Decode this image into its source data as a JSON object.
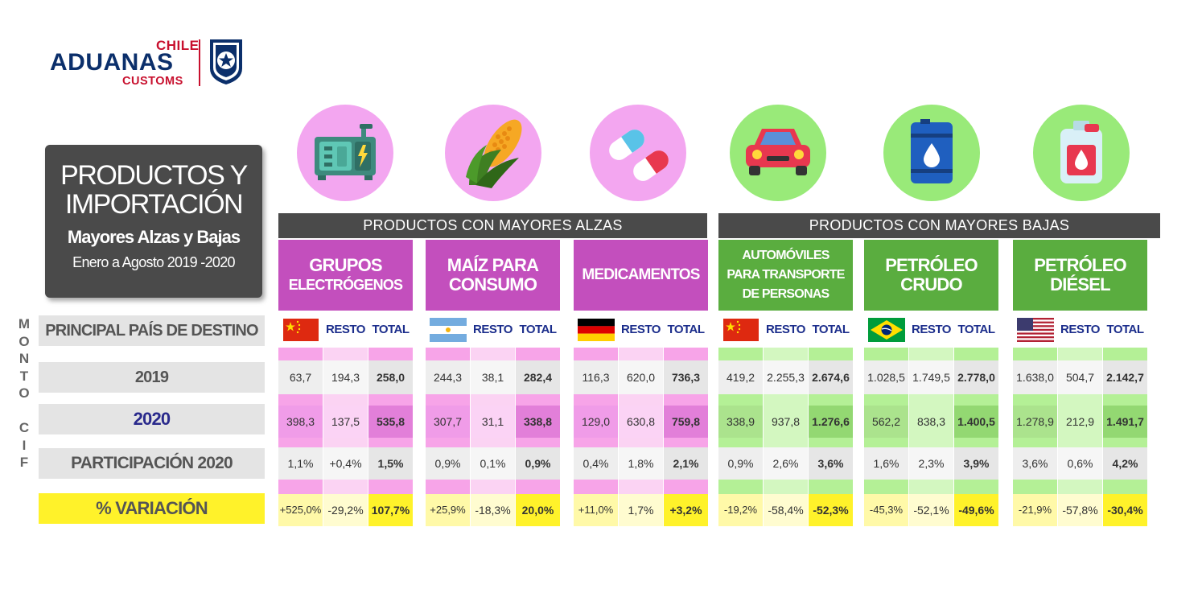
{
  "logo": {
    "chile": "CHILE",
    "aduanas": "ADUANAS",
    "customs": "CUSTOMS"
  },
  "title": {
    "line1": "PRODUCTOS Y",
    "line2": "IMPORTACIÓN",
    "line3": "Mayores Alzas y Bajas",
    "line4": "Enero a Agosto 2019 -2020"
  },
  "side_label": [
    "M",
    "O",
    "N",
    "T",
    "O",
    "",
    "C",
    "I",
    "F"
  ],
  "row_labels": {
    "pais": "PRINCIPAL PAÍS DE DESTINO",
    "y2019": "2019",
    "y2020": "2020",
    "participacion": "PARTICIPACIÓN 2020",
    "variacion": "% VARIACIÓN"
  },
  "sections": {
    "alzas": "PRODUCTOS CON MAYORES ALZAS",
    "bajas": "PRODUCTOS CON MAYORES BAJAS"
  },
  "colors": {
    "pink": "#c34fbd",
    "green": "#5aad3f",
    "dark": "#4a4a4a",
    "yellow": "#fff22a"
  },
  "products": [
    {
      "id": "grupos",
      "group": "alzas",
      "icon": "generator-icon",
      "flag": "china-flag",
      "name_lines": [
        "GRUPOS",
        "ELECTRÓGENOS"
      ],
      "headers": [
        "RESTO",
        "TOTAL"
      ],
      "y2019": [
        "63,7",
        "194,3",
        "258,0"
      ],
      "y2020": [
        "398,3",
        "137,5",
        "535,8"
      ],
      "part": [
        "1,1%",
        "+0,4%",
        "1,5%"
      ],
      "var": [
        "+525,0%",
        "-29,2%",
        "107,7%"
      ]
    },
    {
      "id": "maiz",
      "group": "alzas",
      "icon": "corn-icon",
      "flag": "argentina-flag",
      "name_lines": [
        "MAÍZ PARA",
        "CONSUMO"
      ],
      "headers": [
        "RESTO",
        "TOTAL"
      ],
      "y2019": [
        "244,3",
        "38,1",
        "282,4"
      ],
      "y2020": [
        "307,7",
        "31,1",
        "338,8"
      ],
      "part": [
        "0,9%",
        "0,1%",
        "0,9%"
      ],
      "var": [
        "+25,9%",
        "-18,3%",
        "20,0%"
      ]
    },
    {
      "id": "medicamentos",
      "group": "alzas",
      "icon": "pills-icon",
      "flag": "germany-flag",
      "name_lines": [
        "MEDICAMENTOS"
      ],
      "headers": [
        "RESTO",
        "TOTAL"
      ],
      "y2019": [
        "116,3",
        "620,0",
        "736,3"
      ],
      "y2020": [
        "129,0",
        "630,8",
        "759,8"
      ],
      "part": [
        "0,4%",
        "1,8%",
        "2,1%"
      ],
      "var": [
        "+11,0%",
        "1,7%",
        "+3,2%"
      ]
    },
    {
      "id": "automoviles",
      "group": "bajas",
      "icon": "car-icon",
      "flag": "china-flag",
      "name_lines": [
        "AUTOMÓVILES",
        "PARA TRANSPORTE",
        "DE PERSONAS"
      ],
      "headers": [
        "RESTO",
        "TOTAL"
      ],
      "y2019": [
        "419,2",
        "2.255,3",
        "2.674,6"
      ],
      "y2020": [
        "338,9",
        "937,8",
        "1.276,6"
      ],
      "part": [
        "0,9%",
        "2,6%",
        "3,6%"
      ],
      "var": [
        "-19,2%",
        "-58,4%",
        "-52,3%"
      ]
    },
    {
      "id": "crudo",
      "group": "bajas",
      "icon": "oil-barrel-icon",
      "flag": "brazil-flag",
      "name_lines": [
        "PETRÓLEO",
        "CRUDO"
      ],
      "headers": [
        "RESTO",
        "TOTAL"
      ],
      "y2019": [
        "1.028,5",
        "1.749,5",
        "2.778,0"
      ],
      "y2020": [
        "562,2",
        "838,3",
        "1.400,5"
      ],
      "part": [
        "1,6%",
        "2,3%",
        "3,9%"
      ],
      "var": [
        "-45,3%",
        "-52,1%",
        "-49,6%"
      ]
    },
    {
      "id": "diesel",
      "group": "bajas",
      "icon": "fuel-can-icon",
      "flag": "usa-flag",
      "name_lines": [
        "PETRÓLEO",
        "DIÉSEL"
      ],
      "headers": [
        "RESTO",
        "TOTAL"
      ],
      "y2019": [
        "1.638,0",
        "504,7",
        "2.142,7"
      ],
      "y2020": [
        "1.278,9",
        "212,9",
        "1.491,7"
      ],
      "part": [
        "3,6%",
        "0,6%",
        "4,2%"
      ],
      "var": [
        "-21,9%",
        "-57,8%",
        "-30,4%"
      ]
    }
  ]
}
